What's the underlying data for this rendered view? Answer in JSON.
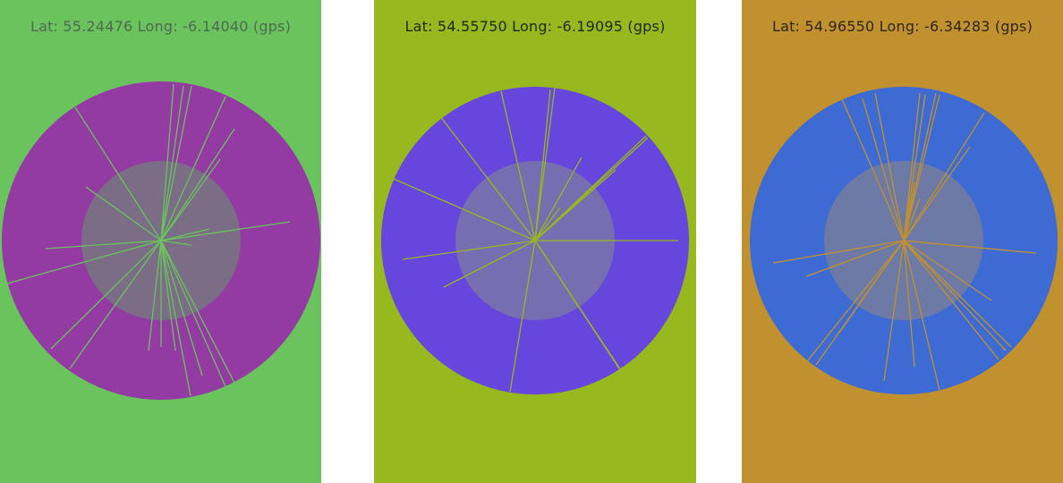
{
  "panels": [
    {
      "coords_label": "Lat: 55.24476 Long: -6.14040 (gps)",
      "background_color": "#6AC35C",
      "disc_color": "#933BA3",
      "inner_color": "#7B6D85",
      "line_color": "#6AC35C",
      "text_color": "#4F6A52"
    },
    {
      "coords_label": "Lat: 54.55750 Long: -6.19095 (gps)",
      "background_color": "#97B81F",
      "disc_color": "#6646DD",
      "inner_color": "#776EB1",
      "line_color": "#97B81F",
      "text_color": "#1E2A0E"
    },
    {
      "coords_label": "Lat: 54.96550 Long: -6.34283 (gps)",
      "background_color": "#C1912F",
      "disc_color": "#3D6BD3",
      "inner_color": "#6D7AA6",
      "line_color": "#C1912F",
      "text_color": "#2E2612"
    }
  ]
}
